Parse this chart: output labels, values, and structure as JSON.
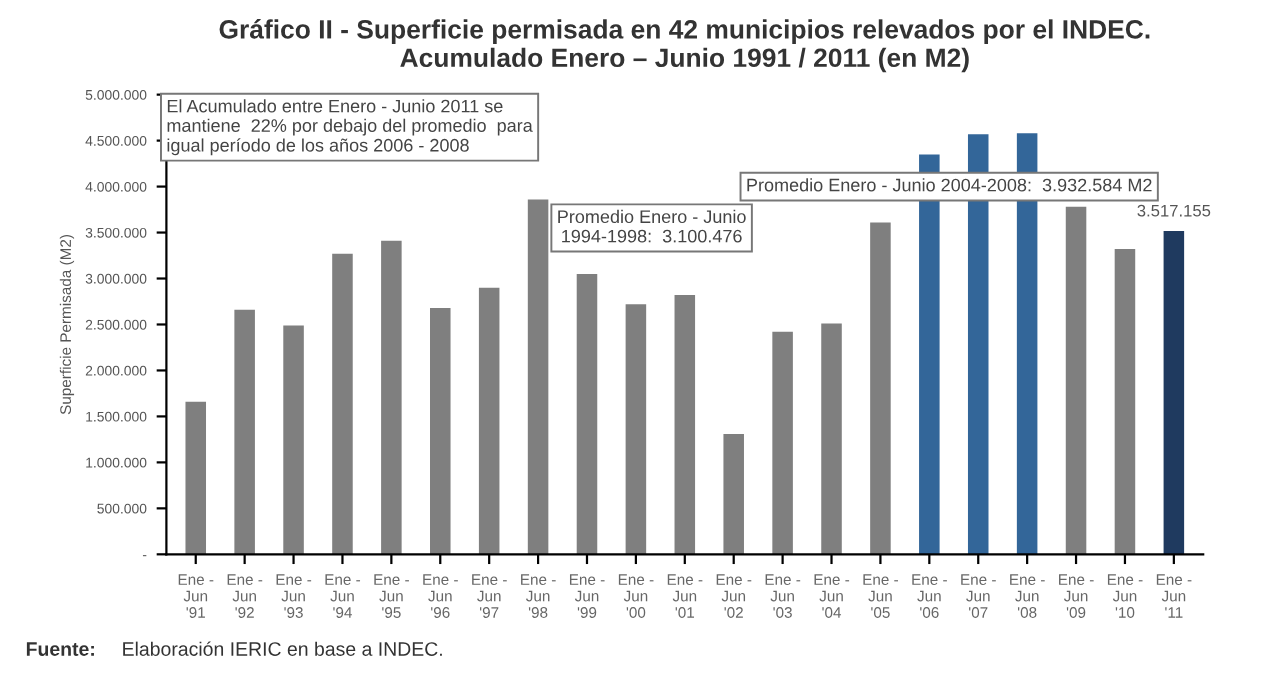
{
  "chart_data": {
    "type": "bar",
    "title": "Gráfico II - Superficie permisada en 42 municipios relevados por el INDEC.\nAcumulado Enero – Junio 1991 / 2011 (en M2)",
    "ylabel": "Superficie Permisada (M2)",
    "categories": [
      "Ene -\nJun\n'91",
      "Ene -\nJun\n'92",
      "Ene -\nJun\n'93",
      "Ene -\nJun\n'94",
      "Ene -\nJun\n'95",
      "Ene -\nJun\n'96",
      "Ene -\nJun\n'97",
      "Ene -\nJun\n'98",
      "Ene -\nJun\n'99",
      "Ene -\nJun\n'00",
      "Ene -\nJun\n'01",
      "Ene -\nJun\n'02",
      "Ene -\nJun\n'03",
      "Ene -\nJun\n'04",
      "Ene -\nJun\n'05",
      "Ene -\nJun\n'06",
      "Ene -\nJun\n'07",
      "Ene -\nJun\n'08",
      "Ene -\nJun\n'09",
      "Ene -\nJun\n'10",
      "Ene -\nJun\n'11"
    ],
    "values": [
      1660000,
      2660000,
      2490000,
      3270000,
      3410000,
      2680000,
      2900000,
      3860000,
      3050000,
      2720000,
      2820000,
      1310000,
      2420000,
      2510000,
      3610000,
      4350000,
      4570000,
      4580000,
      3780000,
      3320000,
      3517155
    ],
    "colors": [
      "#7f7f7f",
      "#7f7f7f",
      "#7f7f7f",
      "#7f7f7f",
      "#7f7f7f",
      "#7f7f7f",
      "#7f7f7f",
      "#7f7f7f",
      "#7f7f7f",
      "#7f7f7f",
      "#7f7f7f",
      "#7f7f7f",
      "#7f7f7f",
      "#7f7f7f",
      "#7f7f7f",
      "#336699",
      "#336699",
      "#336699",
      "#7f7f7f",
      "#7f7f7f",
      "#1f3a5f"
    ],
    "value_labels": [
      null,
      null,
      null,
      null,
      null,
      null,
      null,
      null,
      null,
      null,
      null,
      null,
      null,
      null,
      null,
      null,
      null,
      null,
      null,
      null,
      "3.517.155"
    ],
    "ylim": [
      0,
      5000000
    ],
    "yticks": [
      {
        "value": 0,
        "label": "-"
      },
      {
        "value": 500000,
        "label": "500.000"
      },
      {
        "value": 1000000,
        "label": "1.000.000"
      },
      {
        "value": 1500000,
        "label": "1.500.000"
      },
      {
        "value": 2000000,
        "label": "2.000.000"
      },
      {
        "value": 2500000,
        "label": "2.500.000"
      },
      {
        "value": 3000000,
        "label": "3.000.000"
      },
      {
        "value": 3500000,
        "label": "3.500.000"
      },
      {
        "value": 4000000,
        "label": "4.000.000"
      },
      {
        "value": 4500000,
        "label": "4.500.000"
      },
      {
        "value": 5000000,
        "label": "5.000.000"
      }
    ],
    "annotations": [
      "El Acumulado entre Enero - Junio 2011 se\nmantiene  22% por debajo del promedio  para\nigual período de los años 2006 - 2008",
      "Promedio Enero - Junio\n1994-1998:  3.100.476",
      "Promedio Enero - Junio 2004-2008:  3.932.584 M2",
      "Fuente: Elaboración IERIC en base a INDEC."
    ],
    "grid": false,
    "legend": false
  }
}
